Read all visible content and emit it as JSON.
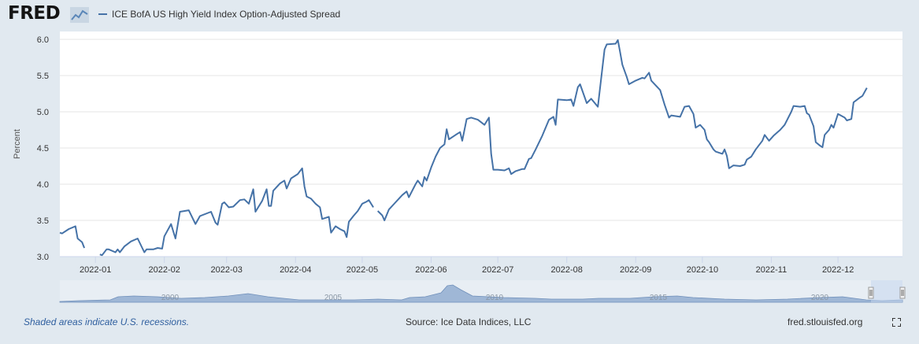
{
  "header": {
    "logo_text": "FRED",
    "logo_icon": "line-chart-icon",
    "legend_label": "ICE BofA US High Yield Index Option-Adjusted Spread"
  },
  "colors": {
    "series": "#4572a7",
    "background": "#e1e9f0",
    "plot_background": "#ffffff",
    "grid": "#e6e6e6",
    "navigator_fill": "#9fb7d6",
    "navigator_mask": "#c4d7ef"
  },
  "chart_data": {
    "type": "line",
    "title": "",
    "ylabel": "Percent",
    "xlabel": "",
    "ylim": [
      3.0,
      6.0
    ],
    "yticks": [
      3.0,
      3.5,
      4.0,
      4.5,
      5.0,
      5.5,
      6.0
    ],
    "xlim": [
      "2021-12-16",
      "2022-12-30"
    ],
    "xticks": [
      {
        "date": "2022-01-01",
        "label": "2022-01"
      },
      {
        "date": "2022-02-01",
        "label": "2022-02"
      },
      {
        "date": "2022-03-01",
        "label": "2022-03"
      },
      {
        "date": "2022-04-01",
        "label": "2022-04"
      },
      {
        "date": "2022-05-01",
        "label": "2022-05"
      },
      {
        "date": "2022-06-01",
        "label": "2022-06"
      },
      {
        "date": "2022-07-01",
        "label": "2022-07"
      },
      {
        "date": "2022-08-01",
        "label": "2022-08"
      },
      {
        "date": "2022-09-01",
        "label": "2022-09"
      },
      {
        "date": "2022-10-01",
        "label": "2022-10"
      },
      {
        "date": "2022-11-01",
        "label": "2022-11"
      },
      {
        "date": "2022-12-01",
        "label": "2022-12"
      }
    ],
    "grid": true,
    "legend": "top-left",
    "series": [
      {
        "name": "ICE BofA US High Yield Index Option-Adjusted Spread",
        "segments": [
          [
            [
              "2021-12-16",
              3.33
            ],
            [
              "2021-12-17",
              3.32
            ],
            [
              "2021-12-20",
              3.38
            ],
            [
              "2021-12-23",
              3.42
            ],
            [
              "2021-12-24",
              3.25
            ],
            [
              "2021-12-26",
              3.2
            ],
            [
              "2021-12-27",
              3.12
            ]
          ],
          [
            [
              "2022-01-03",
              3.03
            ],
            [
              "2022-01-04",
              3.02
            ],
            [
              "2022-01-06",
              3.1
            ],
            [
              "2022-01-07",
              3.1
            ],
            [
              "2022-01-10",
              3.06
            ],
            [
              "2022-01-11",
              3.1
            ],
            [
              "2022-01-12",
              3.06
            ],
            [
              "2022-01-14",
              3.14
            ],
            [
              "2022-01-17",
              3.21
            ],
            [
              "2022-01-20",
              3.25
            ],
            [
              "2022-01-23",
              3.06
            ],
            [
              "2022-01-24",
              3.1
            ],
            [
              "2022-01-27",
              3.1
            ],
            [
              "2022-01-29",
              3.12
            ],
            [
              "2022-01-31",
              3.11
            ],
            [
              "2022-02-01",
              3.28
            ],
            [
              "2022-02-04",
              3.45
            ],
            [
              "2022-02-06",
              3.25
            ],
            [
              "2022-02-08",
              3.62
            ],
            [
              "2022-02-12",
              3.64
            ],
            [
              "2022-02-15",
              3.45
            ],
            [
              "2022-02-17",
              3.56
            ],
            [
              "2022-02-22",
              3.62
            ],
            [
              "2022-02-24",
              3.47
            ],
            [
              "2022-02-25",
              3.44
            ],
            [
              "2022-02-27",
              3.73
            ],
            [
              "2022-02-28",
              3.75
            ],
            [
              "2022-03-02",
              3.68
            ],
            [
              "2022-03-04",
              3.69
            ],
            [
              "2022-03-07",
              3.78
            ],
            [
              "2022-03-09",
              3.79
            ],
            [
              "2022-03-11",
              3.73
            ],
            [
              "2022-03-13",
              3.93
            ],
            [
              "2022-03-14",
              3.62
            ],
            [
              "2022-03-17",
              3.77
            ],
            [
              "2022-03-19",
              3.93
            ],
            [
              "2022-03-20",
              3.7
            ],
            [
              "2022-03-21",
              3.7
            ],
            [
              "2022-03-22",
              3.91
            ],
            [
              "2022-03-25",
              4.01
            ],
            [
              "2022-03-27",
              4.05
            ],
            [
              "2022-03-28",
              3.94
            ],
            [
              "2022-03-30",
              4.08
            ],
            [
              "2022-04-02",
              4.14
            ],
            [
              "2022-04-04",
              4.22
            ],
            [
              "2022-04-05",
              3.97
            ],
            [
              "2022-04-06",
              3.83
            ],
            [
              "2022-04-08",
              3.8
            ],
            [
              "2022-04-10",
              3.73
            ],
            [
              "2022-04-12",
              3.68
            ],
            [
              "2022-04-13",
              3.52
            ],
            [
              "2022-04-16",
              3.55
            ],
            [
              "2022-04-17",
              3.33
            ],
            [
              "2022-04-19",
              3.42
            ],
            [
              "2022-04-21",
              3.38
            ],
            [
              "2022-04-23",
              3.35
            ],
            [
              "2022-04-24",
              3.27
            ],
            [
              "2022-04-25",
              3.48
            ],
            [
              "2022-04-27",
              3.56
            ],
            [
              "2022-04-29",
              3.63
            ],
            [
              "2022-05-01",
              3.73
            ],
            [
              "2022-05-03",
              3.76
            ],
            [
              "2022-05-04",
              3.78
            ],
            [
              "2022-05-06",
              3.68
            ]
          ],
          [
            [
              "2022-05-08",
              3.63
            ],
            [
              "2022-05-10",
              3.57
            ],
            [
              "2022-05-11",
              3.5
            ],
            [
              "2022-05-13",
              3.65
            ],
            [
              "2022-05-16",
              3.75
            ],
            [
              "2022-05-19",
              3.85
            ],
            [
              "2022-05-21",
              3.9
            ],
            [
              "2022-05-22",
              3.82
            ],
            [
              "2022-05-25",
              4.0
            ],
            [
              "2022-05-26",
              4.05
            ],
            [
              "2022-05-28",
              3.97
            ],
            [
              "2022-05-29",
              4.1
            ],
            [
              "2022-05-30",
              4.05
            ],
            [
              "2022-06-01",
              4.23
            ],
            [
              "2022-06-03",
              4.38
            ],
            [
              "2022-06-05",
              4.5
            ],
            [
              "2022-06-07",
              4.55
            ],
            [
              "2022-06-08",
              4.76
            ],
            [
              "2022-06-09",
              4.62
            ],
            [
              "2022-06-12",
              4.68
            ],
            [
              "2022-06-14",
              4.72
            ],
            [
              "2022-06-15",
              4.6
            ],
            [
              "2022-06-17",
              4.9
            ],
            [
              "2022-06-19",
              4.92
            ],
            [
              "2022-06-22",
              4.89
            ],
            [
              "2022-06-25",
              4.82
            ],
            [
              "2022-06-27",
              4.92
            ],
            [
              "2022-06-28",
              4.42
            ],
            [
              "2022-06-29",
              4.2
            ],
            [
              "2022-07-01",
              4.2
            ],
            [
              "2022-07-04",
              4.19
            ],
            [
              "2022-07-06",
              4.22
            ],
            [
              "2022-07-07",
              4.14
            ],
            [
              "2022-07-09",
              4.18
            ],
            [
              "2022-07-12",
              4.21
            ],
            [
              "2022-07-13",
              4.21
            ],
            [
              "2022-07-15",
              4.35
            ],
            [
              "2022-07-16",
              4.36
            ],
            [
              "2022-07-18",
              4.48
            ],
            [
              "2022-07-21",
              4.67
            ],
            [
              "2022-07-24",
              4.89
            ],
            [
              "2022-07-26",
              4.93
            ],
            [
              "2022-07-27",
              4.82
            ],
            [
              "2022-07-28",
              5.17
            ],
            [
              "2022-08-01",
              5.16
            ],
            [
              "2022-08-03",
              5.17
            ],
            [
              "2022-08-04",
              5.08
            ],
            [
              "2022-08-06",
              5.34
            ],
            [
              "2022-08-07",
              5.38
            ],
            [
              "2022-08-10",
              5.12
            ],
            [
              "2022-08-12",
              5.18
            ],
            [
              "2022-08-15",
              5.07
            ],
            [
              "2022-08-17",
              5.6
            ],
            [
              "2022-08-18",
              5.86
            ],
            [
              "2022-08-19",
              5.93
            ],
            [
              "2022-08-23",
              5.94
            ],
            [
              "2022-08-24",
              5.99
            ],
            [
              "2022-08-25",
              5.82
            ],
            [
              "2022-08-26",
              5.65
            ],
            [
              "2022-08-28",
              5.48
            ],
            [
              "2022-08-29",
              5.38
            ],
            [
              "2022-09-01",
              5.43
            ],
            [
              "2022-09-04",
              5.47
            ],
            [
              "2022-09-05",
              5.46
            ],
            [
              "2022-09-07",
              5.54
            ],
            [
              "2022-09-08",
              5.43
            ],
            [
              "2022-09-12",
              5.3
            ],
            [
              "2022-09-14",
              5.1
            ],
            [
              "2022-09-16",
              4.92
            ],
            [
              "2022-09-17",
              4.95
            ],
            [
              "2022-09-19",
              4.94
            ],
            [
              "2022-09-21",
              4.93
            ],
            [
              "2022-09-23",
              5.07
            ],
            [
              "2022-09-25",
              5.08
            ],
            [
              "2022-09-27",
              4.97
            ],
            [
              "2022-09-28",
              4.78
            ],
            [
              "2022-09-30",
              4.82
            ],
            [
              "2022-10-02",
              4.75
            ],
            [
              "2022-10-03",
              4.62
            ],
            [
              "2022-10-04",
              4.58
            ],
            [
              "2022-10-06",
              4.48
            ],
            [
              "2022-10-07",
              4.45
            ],
            [
              "2022-10-10",
              4.42
            ],
            [
              "2022-10-11",
              4.48
            ],
            [
              "2022-10-12",
              4.39
            ],
            [
              "2022-10-13",
              4.22
            ],
            [
              "2022-10-15",
              4.26
            ],
            [
              "2022-10-18",
              4.25
            ],
            [
              "2022-10-20",
              4.27
            ],
            [
              "2022-10-21",
              4.34
            ],
            [
              "2022-10-23",
              4.38
            ],
            [
              "2022-10-25",
              4.48
            ],
            [
              "2022-10-28",
              4.6
            ],
            [
              "2022-10-29",
              4.68
            ],
            [
              "2022-10-31",
              4.6
            ],
            [
              "2022-11-02",
              4.67
            ],
            [
              "2022-11-05",
              4.75
            ],
            [
              "2022-11-07",
              4.82
            ],
            [
              "2022-11-10",
              5.0
            ],
            [
              "2022-11-11",
              5.08
            ],
            [
              "2022-11-14",
              5.07
            ],
            [
              "2022-11-16",
              5.08
            ],
            [
              "2022-11-17",
              4.98
            ],
            [
              "2022-11-18",
              4.96
            ],
            [
              "2022-11-20",
              4.8
            ],
            [
              "2022-11-21",
              4.58
            ],
            [
              "2022-11-23",
              4.53
            ],
            [
              "2022-11-24",
              4.51
            ],
            [
              "2022-11-25",
              4.68
            ],
            [
              "2022-11-27",
              4.75
            ],
            [
              "2022-11-28",
              4.82
            ],
            [
              "2022-11-29",
              4.78
            ],
            [
              "2022-12-01",
              4.97
            ],
            [
              "2022-12-04",
              4.92
            ],
            [
              "2022-12-05",
              4.88
            ],
            [
              "2022-12-07",
              4.9
            ],
            [
              "2022-12-08",
              5.13
            ],
            [
              "2022-12-11",
              5.2
            ],
            [
              "2022-12-12",
              5.22
            ],
            [
              "2022-12-14",
              5.33
            ]
          ]
        ]
      }
    ]
  },
  "navigator": {
    "year_labels": [
      "2000",
      "2005",
      "2010",
      "2015",
      "2020"
    ]
  },
  "footer": {
    "recession_note": "Shaded areas indicate U.S. recessions.",
    "source": "Source: Ice Data Indices, LLC",
    "site": "fred.stlouisfed.org",
    "fullscreen_icon": "fullscreen-icon"
  }
}
